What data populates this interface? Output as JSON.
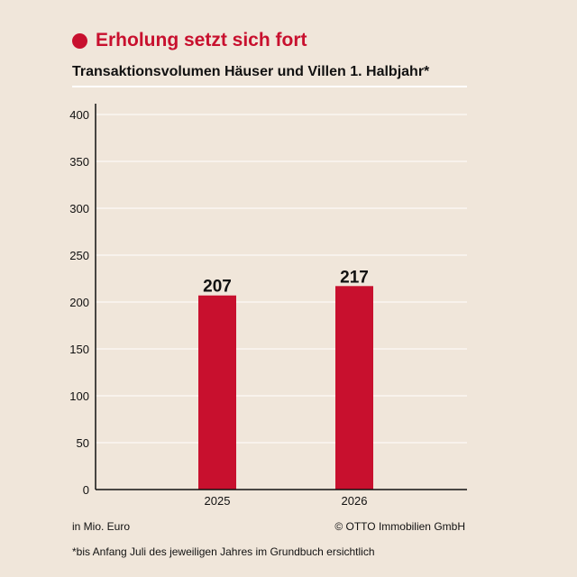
{
  "header": {
    "title": "Erholung setzt sich fort",
    "subtitle": "Transaktionsvolumen Häuser und Villen 1. Halbjahr*"
  },
  "footer": {
    "unit_note": "in Mio. Euro",
    "source": "© OTTO Immobilien GmbH",
    "footnote": "*bis Anfang Juli des jeweiligen Jahres im Grundbuch ersichtlich"
  },
  "colors": {
    "accent": "#c8102e",
    "background": "#f0e6da",
    "gridline": "#ffffff",
    "text": "#111111"
  },
  "chart_data": {
    "type": "bar",
    "title": "Transaktionsvolumen Häuser und Villen 1. Halbjahr*",
    "xlabel": "",
    "ylabel": "in Mio. Euro",
    "categories": [
      "2025",
      "2026"
    ],
    "values": [
      207,
      217
    ],
    "data_labels": [
      "207",
      "217"
    ],
    "ylim": [
      0,
      400
    ],
    "yticks": [
      0,
      50,
      100,
      150,
      200,
      250,
      300,
      350,
      400
    ],
    "grid": true,
    "legend": "none"
  }
}
